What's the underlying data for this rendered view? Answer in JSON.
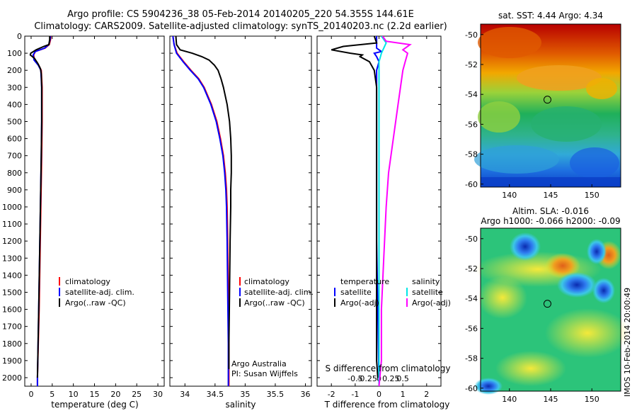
{
  "header": {
    "title_line1": "Argo profile: CS 5904236_38 05-Feb-2014 20140205_220 54.355S 144.61E",
    "title_line2": "Climatology: CARS2009. Satellite-adjusted climatology: synTS_20140203.nc (2.2d earlier)"
  },
  "stamp": "IMOS 10-Feb-2014 20:00:49",
  "chart_data": [
    {
      "id": "temperature",
      "type": "line",
      "xlabel": "temperature (deg C)",
      "xlim": [
        -1.5,
        31.5
      ],
      "ylim": [
        0,
        2050
      ],
      "x_ticks": [
        0,
        5,
        10,
        15,
        20,
        25,
        30
      ],
      "y_ticks": [
        0,
        100,
        200,
        300,
        400,
        500,
        600,
        700,
        800,
        900,
        1000,
        1100,
        1200,
        1300,
        1400,
        1500,
        1600,
        1700,
        1800,
        1900,
        2000
      ],
      "legend": [
        "climatology",
        "satellite-adj. clim.",
        "Argo(..raw -QC)"
      ],
      "series": [
        {
          "name": "climatology",
          "color": "#ff0000",
          "depth": [
            0,
            20,
            50,
            70,
            90,
            110,
            140,
            170,
            200,
            300,
            500,
            700,
            1000,
            1300,
            1600,
            2000,
            2050
          ],
          "values": [
            4.7,
            4.6,
            4.3,
            3.3,
            1.0,
            0.6,
            0.8,
            1.8,
            2.4,
            2.6,
            2.6,
            2.5,
            2.3,
            2.1,
            1.9,
            1.5,
            1.5
          ]
        },
        {
          "name": "satellite-adj. clim.",
          "color": "#0000ff",
          "depth": [
            0,
            20,
            50,
            70,
            90,
            110,
            140,
            170,
            200,
            300,
            500,
            700,
            1000,
            1300,
            1600,
            2000,
            2050
          ],
          "values": [
            4.6,
            4.5,
            4.2,
            3.2,
            1.0,
            0.5,
            0.7,
            1.7,
            2.3,
            2.5,
            2.5,
            2.4,
            2.2,
            2.0,
            1.8,
            1.5,
            1.5
          ]
        },
        {
          "name": "Argo(..raw -QC)",
          "color": "#000000",
          "depth": [
            0,
            20,
            50,
            60,
            80,
            100,
            110,
            130,
            160,
            190,
            220,
            300,
            500,
            700,
            1000,
            1300,
            1600,
            2000
          ],
          "values": [
            4.4,
            4.4,
            4.2,
            3.0,
            1.2,
            -0.1,
            -0.2,
            0.8,
            1.6,
            2.2,
            2.4,
            2.5,
            2.5,
            2.4,
            2.2,
            2.0,
            1.8,
            1.5
          ]
        }
      ]
    },
    {
      "id": "salinity",
      "type": "line",
      "xlabel": "salinity",
      "xlim": [
        33.75,
        36.1
      ],
      "ylim": [
        0,
        2050
      ],
      "x_ticks": [
        34,
        34.5,
        35,
        35.5,
        36
      ],
      "legend": [
        "climatology",
        "satellite-adj. clim.",
        "Argo(..raw -QC)"
      ],
      "annotation": [
        "Argo Australia",
        "PI: Susan Wijffels"
      ],
      "series": [
        {
          "name": "climatology",
          "color": "#ff0000",
          "depth": [
            0,
            50,
            100,
            150,
            200,
            250,
            300,
            400,
            500,
            600,
            700,
            800,
            900,
            1000,
            1200,
            1500,
            1800,
            2050
          ],
          "values": [
            33.8,
            33.82,
            33.87,
            33.98,
            34.1,
            34.23,
            34.32,
            34.44,
            34.53,
            34.59,
            34.64,
            34.67,
            34.69,
            34.7,
            34.71,
            34.72,
            34.73,
            34.73
          ]
        },
        {
          "name": "satellite-adj. clim.",
          "color": "#0000ff",
          "depth": [
            0,
            50,
            100,
            150,
            200,
            250,
            300,
            400,
            500,
            600,
            700,
            800,
            900,
            1000,
            1200,
            1500,
            1800,
            2050
          ],
          "values": [
            33.8,
            33.82,
            33.86,
            33.97,
            34.09,
            34.22,
            34.31,
            34.43,
            34.52,
            34.58,
            34.63,
            34.66,
            34.68,
            34.69,
            34.7,
            34.71,
            34.72,
            34.72
          ]
        },
        {
          "name": "Argo(..raw -QC)",
          "color": "#000000",
          "depth": [
            0,
            50,
            80,
            100,
            120,
            140,
            170,
            200,
            250,
            300,
            400,
            500,
            600,
            700,
            800,
            900,
            1000,
            1200,
            1500,
            1800,
            1950
          ],
          "values": [
            33.85,
            33.86,
            33.92,
            34.12,
            34.28,
            34.4,
            34.49,
            34.55,
            34.6,
            34.64,
            34.7,
            34.74,
            34.76,
            34.77,
            34.77,
            34.76,
            34.76,
            34.75,
            34.74,
            34.73,
            34.73
          ]
        }
      ]
    },
    {
      "id": "differences",
      "type": "line",
      "xlabel": "T difference from climatology",
      "xlabel_top": "S difference from climatology",
      "xlim": [
        -2.6,
        2.6
      ],
      "ylim": [
        0,
        2050
      ],
      "x_ticks": [
        -2,
        -1,
        0,
        1,
        2
      ],
      "x_ticks_top": [
        "-0.5",
        "-0.25",
        "0",
        "0.25",
        "0.5"
      ],
      "legend_groups": [
        "temperature",
        "salinity"
      ],
      "legend": [
        "satellite",
        "Argo(-adj)",
        "satellite",
        "Argo(-adj)"
      ],
      "series": [
        {
          "name": "satellite",
          "group": "temperature",
          "color": "#0000ff",
          "depth": [
            0,
            40,
            70,
            90,
            100,
            120,
            150,
            200,
            300,
            500,
            800,
            1200,
            1600,
            2050
          ],
          "values": [
            -0.1,
            -0.1,
            -0.1,
            0.1,
            -0.2,
            -0.1,
            0.0,
            -0.1,
            -0.1,
            -0.1,
            -0.1,
            -0.1,
            -0.05,
            0.0
          ]
        },
        {
          "name": "Argo(-adj)",
          "group": "temperature",
          "color": "#000000",
          "depth": [
            0,
            40,
            60,
            80,
            100,
            110,
            120,
            150,
            200,
            300,
            500,
            700,
            1000,
            1300,
            1600,
            1900,
            2000
          ],
          "values": [
            -0.2,
            -0.1,
            -1.5,
            -2.0,
            -1.2,
            -0.7,
            -0.8,
            -0.4,
            -0.2,
            -0.1,
            -0.1,
            -0.1,
            -0.1,
            -0.1,
            -0.1,
            -0.1,
            -0.05
          ]
        },
        {
          "name": "satellite",
          "group": "salinity",
          "color": "#00e5e5",
          "depth": [
            0,
            40,
            70,
            100,
            150,
            200,
            300,
            500,
            800,
            1200,
            1600,
            2050
          ],
          "values": [
            0.1,
            0.3,
            0.2,
            0.1,
            0.0,
            0.0,
            0.0,
            0.0,
            0.0,
            0.0,
            0.0,
            0.0
          ]
        },
        {
          "name": "Argo(-adj)",
          "group": "salinity",
          "color": "#ff00ff",
          "depth": [
            0,
            30,
            50,
            80,
            100,
            150,
            200,
            300,
            400,
            600,
            800,
            1000,
            1300,
            1600,
            1900,
            2050
          ],
          "values": [
            0.15,
            0.3,
            1.3,
            1.0,
            1.2,
            1.1,
            1.0,
            0.9,
            0.8,
            0.6,
            0.4,
            0.3,
            0.2,
            0.1,
            0.1,
            0.0
          ]
        }
      ]
    },
    {
      "id": "sst_map",
      "type": "heatmap",
      "title": "sat. SST: 4.44 Argo: 4.34",
      "x_ticks": [
        140,
        145,
        150
      ],
      "y_ticks": [
        -50,
        -52,
        -54,
        -56,
        -58,
        -60
      ],
      "xlim": [
        136.5,
        153.5
      ],
      "ylim": [
        -60.2,
        -49.3
      ],
      "marker": {
        "lon": 144.61,
        "lat": -54.355
      }
    },
    {
      "id": "sla_map",
      "type": "heatmap",
      "title": "Altim. SLA: -0.016",
      "subtitle": "Argo h1000: -0.066 h2000: -0.09",
      "x_ticks": [
        140,
        145,
        150
      ],
      "y_ticks": [
        -50,
        -52,
        -54,
        -56,
        -58,
        -60
      ],
      "xlim": [
        136.5,
        153.5
      ],
      "ylim": [
        -60.2,
        -49.3
      ],
      "marker": {
        "lon": 144.61,
        "lat": -54.355
      }
    }
  ]
}
